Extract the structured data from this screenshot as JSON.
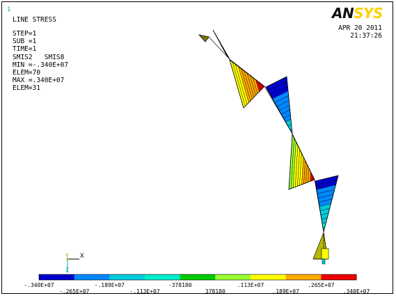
{
  "window": {
    "number": "1"
  },
  "header": {
    "title": "LINE STRESS",
    "info_lines": [
      "STEP=1",
      "SUB =1",
      "TIME=1",
      "SMIS2   SMIS8",
      "MIN =-.340E+07",
      "ELEM=70",
      "MAX =.340E+07",
      "ELEM=31"
    ],
    "date": "APR 20 2011",
    "time": "21:37:26"
  },
  "logo": {
    "part1": "AN",
    "part2": "SYS"
  },
  "triad": {
    "x": "X",
    "y": "Y",
    "z": "Z"
  },
  "legend": {
    "colors": [
      "#0000cc",
      "#0088ff",
      "#00ccdd",
      "#00eecc",
      "#00cc00",
      "#99ff33",
      "#ffff00",
      "#ffaa00",
      "#ee0000"
    ],
    "labels_upper": [
      "-.340E+07",
      "-.189E+07",
      "-378180",
      ".113E+07",
      ".265E+07"
    ],
    "labels_lower": [
      "-.265E+07",
      "-.113E+07",
      "378180",
      ".189E+07",
      ".340E+07"
    ]
  }
}
